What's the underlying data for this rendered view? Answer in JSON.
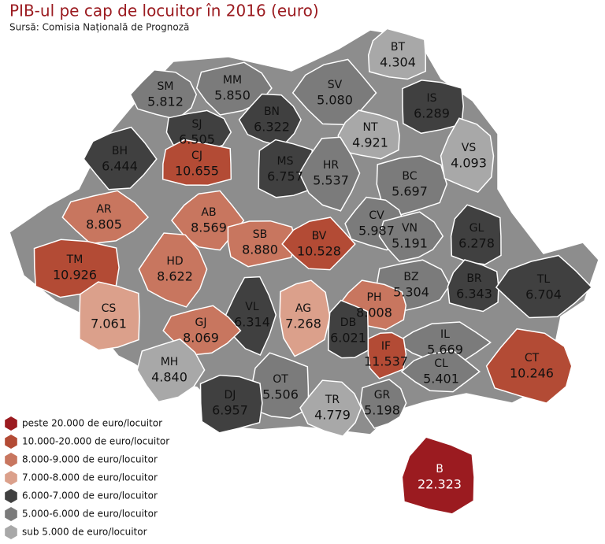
{
  "header": {
    "title": "PIB-ul pe cap de locuitor în 2016 (euro)",
    "source": "Sursă: Comisia Națională de Prognoză"
  },
  "counties": [
    {
      "code": "SM",
      "value": "5.812",
      "color": "#7b7b7b"
    },
    {
      "code": "MM",
      "value": "5.850",
      "color": "#7b7b7b"
    },
    {
      "code": "BT",
      "value": "4.304",
      "color": "#a8a8a8"
    },
    {
      "code": "SV",
      "value": "5.080",
      "color": "#7b7b7b"
    },
    {
      "code": "IS",
      "value": "6.289",
      "color": "#404040"
    },
    {
      "code": "BN",
      "value": "6.322",
      "color": "#404040"
    },
    {
      "code": "SJ",
      "value": "6.505",
      "color": "#404040"
    },
    {
      "code": "NT",
      "value": "4.921",
      "color": "#a8a8a8"
    },
    {
      "code": "BH",
      "value": "6.444",
      "color": "#404040"
    },
    {
      "code": "MS",
      "value": "6.757",
      "color": "#404040"
    },
    {
      "code": "HR",
      "value": "5.537",
      "color": "#7b7b7b"
    },
    {
      "code": "BC",
      "value": "5.697",
      "color": "#7b7b7b"
    },
    {
      "code": "VS",
      "value": "4.093",
      "color": "#a8a8a8"
    },
    {
      "code": "AR",
      "value": "8.805",
      "color": "#c8765f"
    },
    {
      "code": "CJ",
      "value": "10.655",
      "color": "#b34b35"
    },
    {
      "code": "AB",
      "value": "8.569",
      "color": "#c8765f"
    },
    {
      "code": "SB",
      "value": "8.880",
      "color": "#c8765f"
    },
    {
      "code": "CV",
      "value": "5.987",
      "color": "#7b7b7b"
    },
    {
      "code": "VN",
      "value": "5.191",
      "color": "#7b7b7b"
    },
    {
      "code": "GL",
      "value": "6.278",
      "color": "#404040"
    },
    {
      "code": "BV",
      "value": "10.528",
      "color": "#b34b35"
    },
    {
      "code": "TM",
      "value": "10.926",
      "color": "#b34b35"
    },
    {
      "code": "HD",
      "value": "8.622",
      "color": "#c8765f"
    },
    {
      "code": "BZ",
      "value": "5.304",
      "color": "#7b7b7b"
    },
    {
      "code": "BR",
      "value": "6.343",
      "color": "#404040"
    },
    {
      "code": "TL",
      "value": "6.704",
      "color": "#404040"
    },
    {
      "code": "CS",
      "value": "7.061",
      "color": "#dba08b"
    },
    {
      "code": "VL",
      "value": "6.314",
      "color": "#404040"
    },
    {
      "code": "AG",
      "value": "7.268",
      "color": "#dba08b"
    },
    {
      "code": "PH",
      "value": "8.008",
      "color": "#c8765f"
    },
    {
      "code": "GJ",
      "value": "8.069",
      "color": "#c8765f"
    },
    {
      "code": "DB",
      "value": "6.021",
      "color": "#404040"
    },
    {
      "code": "IL",
      "value": "5.669",
      "color": "#7b7b7b"
    },
    {
      "code": "IF",
      "value": "11.537",
      "color": "#b34b35"
    },
    {
      "code": "CT",
      "value": "10.246",
      "color": "#b34b35"
    },
    {
      "code": "MH",
      "value": "4.840",
      "color": "#a8a8a8"
    },
    {
      "code": "OT",
      "value": "5.506",
      "color": "#7b7b7b"
    },
    {
      "code": "CL",
      "value": "5.401",
      "color": "#7b7b7b"
    },
    {
      "code": "DJ",
      "value": "6.957",
      "color": "#404040"
    },
    {
      "code": "TR",
      "value": "4.779",
      "color": "#a8a8a8"
    },
    {
      "code": "GR",
      "value": "5.198",
      "color": "#7b7b7b"
    },
    {
      "code": "B",
      "value": "22.323",
      "color": "#9b1b20"
    }
  ],
  "legend": [
    {
      "label": "peste 20.000 de euro/locuitor",
      "color": "#9b1b20"
    },
    {
      "label": "10.000-20.000 de euro/locuitor",
      "color": "#b34b35"
    },
    {
      "label": "8.000-9.000 de euro/locuitor",
      "color": "#c8765f"
    },
    {
      "label": "7.000-8.000 de euro/locuitor",
      "color": "#dba08b"
    },
    {
      "label": "6.000-7.000 de euro/locuitor",
      "color": "#404040"
    },
    {
      "label": "5.000-6.000 de euro/locuitor",
      "color": "#7b7b7b"
    },
    {
      "label": "sub 5.000 de euro/locuitor",
      "color": "#a8a8a8"
    }
  ]
}
